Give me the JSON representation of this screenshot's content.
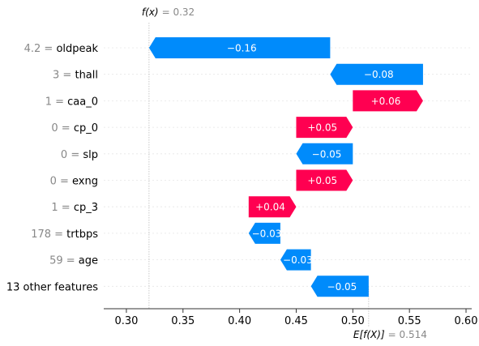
{
  "colors": {
    "negative": "#008BFB",
    "positive": "#FF0051",
    "bar_label": "#FFFFFF",
    "feature_value": "#888888",
    "feature_name": "#000000",
    "axis": "#333333",
    "gridline": "#E6E6E6",
    "reference_line": "#BBBBBB"
  },
  "chart_data": {
    "type": "waterfall",
    "base_value": 0.514,
    "output_value": 0.32,
    "output_annotation": {
      "label": "f(x)",
      "value_text": "= 0.32"
    },
    "base_annotation": {
      "label": "E[f(X)]",
      "value_text": "= 0.514"
    },
    "xlim": [
      0.28,
      0.605
    ],
    "xticks": [
      0.3,
      0.35,
      0.4,
      0.45,
      0.5,
      0.55,
      0.6
    ],
    "xtick_labels": [
      "0.30",
      "0.35",
      "0.40",
      "0.45",
      "0.50",
      "0.55",
      "0.60"
    ],
    "grid": false,
    "features": [
      {
        "value": "4.2",
        "name": "oldpeak",
        "contribution": -0.16,
        "label": "−0.16",
        "start": 0.48,
        "end": 0.32
      },
      {
        "value": "3",
        "name": "thall",
        "contribution": -0.08,
        "label": "−0.08",
        "start": 0.562,
        "end": 0.48
      },
      {
        "value": "1",
        "name": "caa_0",
        "contribution": 0.06,
        "label": "+0.06",
        "start": 0.5,
        "end": 0.562
      },
      {
        "value": "0",
        "name": "cp_0",
        "contribution": 0.05,
        "label": "+0.05",
        "start": 0.45,
        "end": 0.5
      },
      {
        "value": "0",
        "name": "slp",
        "contribution": -0.05,
        "label": "−0.05",
        "start": 0.5,
        "end": 0.45
      },
      {
        "value": "0",
        "name": "exng",
        "contribution": 0.05,
        "label": "+0.05",
        "start": 0.45,
        "end": 0.5
      },
      {
        "value": "1",
        "name": "cp_3",
        "contribution": 0.04,
        "label": "+0.04",
        "start": 0.408,
        "end": 0.45
      },
      {
        "value": "178",
        "name": "trtbps",
        "contribution": -0.03,
        "label": "−0.03",
        "start": 0.436,
        "end": 0.408
      },
      {
        "value": "59",
        "name": "age",
        "contribution": -0.03,
        "label": "−0.03",
        "start": 0.463,
        "end": 0.436
      },
      {
        "value": "",
        "name": "13 other features",
        "contribution": -0.05,
        "label": "−0.05",
        "start": 0.514,
        "end": 0.463
      }
    ]
  }
}
